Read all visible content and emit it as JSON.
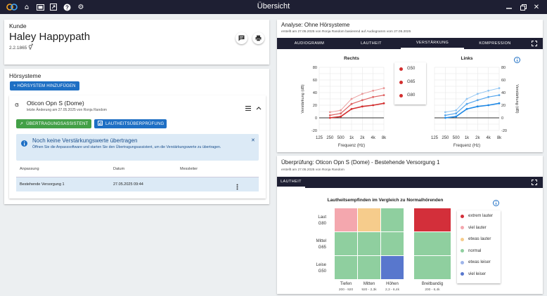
{
  "topbar": {
    "title": "Übersicht"
  },
  "customer": {
    "heading": "Kunde",
    "name": "Haley Happypath",
    "birthdate": "2.2.1865",
    "gender_symbol": "⚥"
  },
  "hearing_systems": {
    "heading": "Hörsysteme",
    "add_button": "+  HÖRSYSTEM HINZUFÜGEN",
    "device": {
      "name": "Oticon Opn S (Dome)",
      "last_change": "letzte Änderung am 27.05.2025 von Ronja Random",
      "transfer_button": "ÜBERTRAGUNGSASSISTENT",
      "loudness_button": "LAUTHEITSÜBERPRÜFUNG",
      "info": {
        "title": "Noch keine Verstärkungswerte übertragen",
        "text": "Öffnen Sie die Anpasssoftware und starten Sie den Übertragungsassistent, um die Verstärkungswerte zu übertragen."
      },
      "table": {
        "headers": [
          "Anpassung",
          "Datum",
          "Messleiter"
        ],
        "rows": [
          {
            "fitting": "Bestehende Versorgung 1",
            "date": "27.05.2025 09:44",
            "leader": ""
          }
        ]
      }
    }
  },
  "analysis": {
    "title": "Analyse: Ohne Hörsysteme",
    "subtitle": "erstellt am 27.05.2025 von Ronja Random basierend auf Audiogramm vom 27.05.2025",
    "tabs": [
      "AUDIOGRAMM",
      "LAUTHEIT",
      "VERSTÄRKUNG",
      "KOMPRESSION"
    ],
    "active_tab": "VERSTÄRKUNG"
  },
  "chart_data": [
    {
      "type": "line",
      "title": "Rechts",
      "xlabel": "Frequenz (Hz)",
      "ylabel": "Verstärkung (dB)",
      "x": [
        "125",
        "250",
        "500",
        "1k",
        "2k",
        "4k",
        "8k"
      ],
      "ylim": [
        -20,
        80
      ],
      "yticks": [
        80,
        60,
        40,
        20,
        0,
        -20
      ],
      "color": "#d32f2f",
      "series": [
        {
          "name": "G50",
          "values": [
            null,
            9,
            12,
            30,
            38,
            43,
            47
          ]
        },
        {
          "name": "G65",
          "values": [
            null,
            4,
            7,
            22,
            28,
            33,
            36
          ]
        },
        {
          "name": "G80",
          "values": [
            null,
            0,
            2,
            14,
            18,
            20,
            23
          ]
        }
      ]
    },
    {
      "type": "line",
      "title": "Links",
      "xlabel": "Frequenz (Hz)",
      "ylabel": "Verstärkung (dB)",
      "x": [
        "125",
        "250",
        "500",
        "1k",
        "2k",
        "4k",
        "8k"
      ],
      "ylim": [
        -20,
        80
      ],
      "yticks": [
        80,
        60,
        40,
        20,
        0,
        -20
      ],
      "color": "#1e88e5",
      "series": [
        {
          "name": "G50",
          "values": [
            null,
            9,
            12,
            30,
            38,
            43,
            47
          ]
        },
        {
          "name": "G65",
          "values": [
            null,
            4,
            7,
            22,
            28,
            33,
            36
          ]
        },
        {
          "name": "G80",
          "values": [
            null,
            0,
            2,
            14,
            18,
            20,
            23
          ]
        }
      ]
    },
    {
      "type": "heatmap",
      "title": "Lautheitsempfinden im Vergleich zu Normalhörenden",
      "rows": [
        {
          "label": "Laut",
          "sub": "G80"
        },
        {
          "label": "Mittel",
          "sub": "G65"
        },
        {
          "label": "Leise",
          "sub": "G50"
        }
      ],
      "columns": [
        {
          "label": "Tiefen",
          "sub": "200 - 920"
        },
        {
          "label": "Mitten",
          "sub": "920 - 2,3k"
        },
        {
          "label": "Höhen",
          "sub": "2,3 - 6,4k"
        },
        {
          "label": "Breitbandig",
          "sub": "200 - 6,4k"
        }
      ],
      "values": [
        [
          "viel lauter",
          "etwas lauter",
          "normal",
          "extrem lauter"
        ],
        [
          "normal",
          "normal",
          "normal",
          "normal"
        ],
        [
          "normal",
          "normal",
          "viel leiser",
          "normal"
        ]
      ],
      "legend": [
        {
          "label": "extrem lauter",
          "color": "#d32f3a"
        },
        {
          "label": "viel lauter",
          "color": "#f4a7ae"
        },
        {
          "label": "etwas lauter",
          "color": "#f6cc8c"
        },
        {
          "label": "normal",
          "color": "#8fcf9f"
        },
        {
          "label": "etwas leiser",
          "color": "#9fb5ea"
        },
        {
          "label": "viel leiser",
          "color": "#5877cd"
        }
      ]
    }
  ],
  "verification": {
    "title": "Überprüfung: Oticon Opn S (Dome) - Bestehende Versorgung 1",
    "subtitle": "erstellt am 27.05.2025 von Ronja Random",
    "tab": "LAUTHEIT"
  }
}
